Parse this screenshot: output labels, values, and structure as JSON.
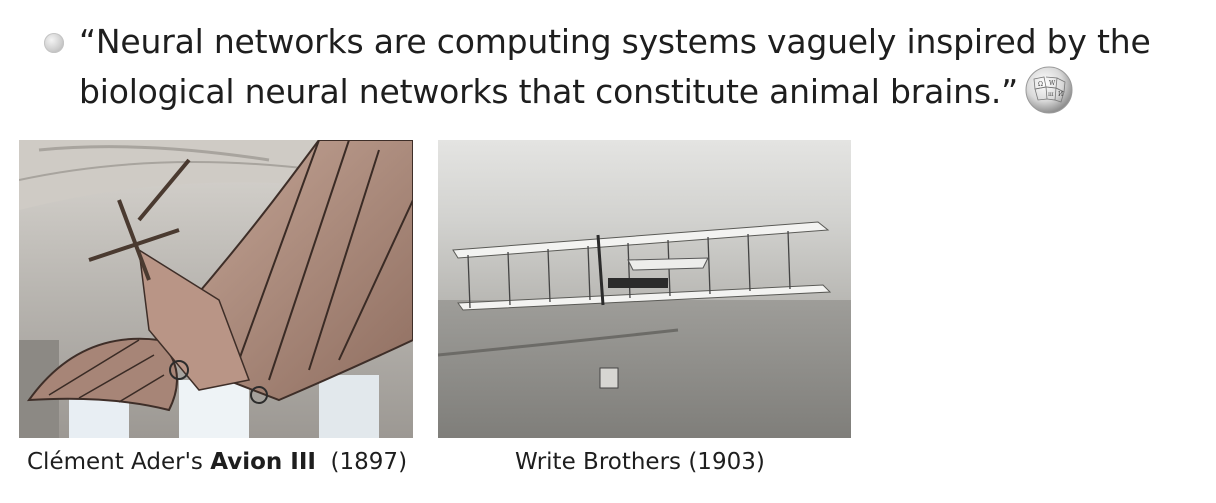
{
  "quote": {
    "line1": "“Neural networks are computing systems vaguely inspired by the",
    "line2": "biological neural networks that constitute animal brains.”",
    "source_icon": "wikipedia-globe-icon"
  },
  "images": [
    {
      "name": "avion-iii-photo",
      "caption_prefix": "Clément Ader's ",
      "caption_bold": "Avion III",
      "caption_suffix": "  (1897)"
    },
    {
      "name": "wright-flyer-photo",
      "caption": "Write Brothers (1903)"
    }
  ],
  "colors": {
    "text": "#1e1e1e",
    "bullet": "#c4c4c4",
    "background": "#ffffff"
  }
}
